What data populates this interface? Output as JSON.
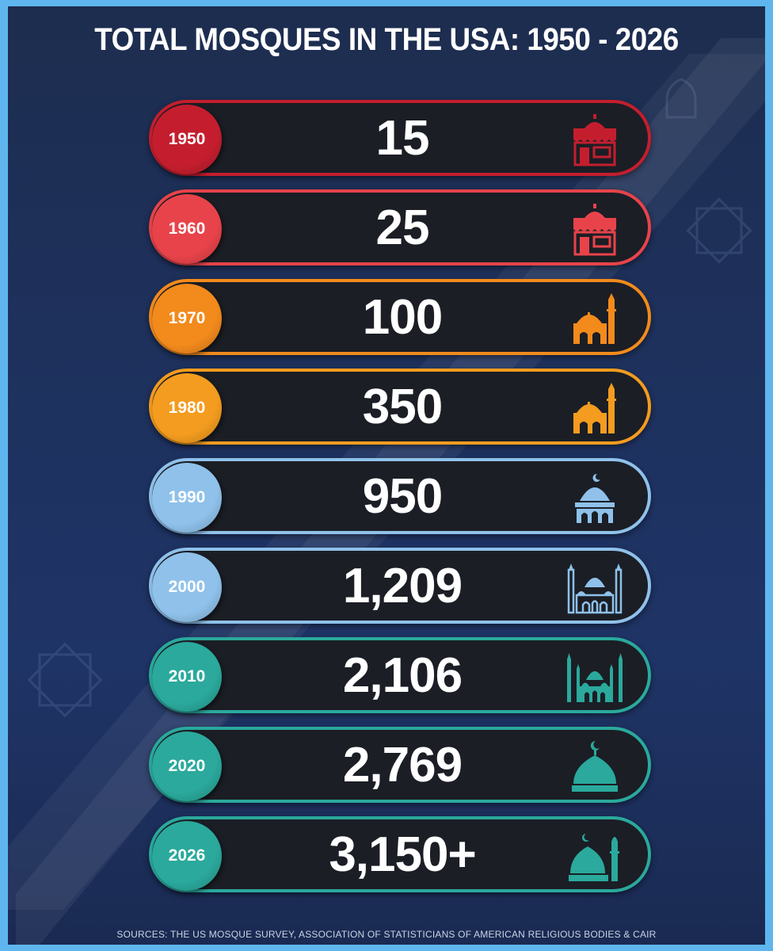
{
  "title": "TOTAL MOSQUES IN THE USA: 1950 - 2026",
  "source": "SOURCES: THE US MOSQUE SURVEY, ASSOCIATION OF STATISTICIANS OF AMERICAN RELIGIOUS BODIES & CAIR",
  "chart_data": {
    "type": "table",
    "title": "TOTAL MOSQUES IN THE USA: 1950 - 2026",
    "categories": [
      "1950",
      "1960",
      "1970",
      "1980",
      "1990",
      "2000",
      "2010",
      "2020",
      "2026"
    ],
    "labels": [
      "15",
      "25",
      "100",
      "350",
      "950",
      "1,209",
      "2,106",
      "2,769",
      "3,150+"
    ],
    "values": [
      15,
      25,
      100,
      350,
      950,
      1209,
      2106,
      2769,
      3150
    ],
    "colors": [
      "#c41e2e",
      "#e8434a",
      "#f28a1c",
      "#f39c1f",
      "#8fc1ea",
      "#8fc1ea",
      "#2aa99c",
      "#2aa99c",
      "#2aa99c"
    ],
    "icons": [
      "shop-dome-icon",
      "shop-dome-icon",
      "mosque-minaret-icon",
      "mosque-minaret-icon",
      "mosque-crescent-icon",
      "mosque-twin-minaret-icon",
      "mosque-four-minaret-icon",
      "dome-crescent-icon",
      "dome-minaret-icon"
    ]
  }
}
